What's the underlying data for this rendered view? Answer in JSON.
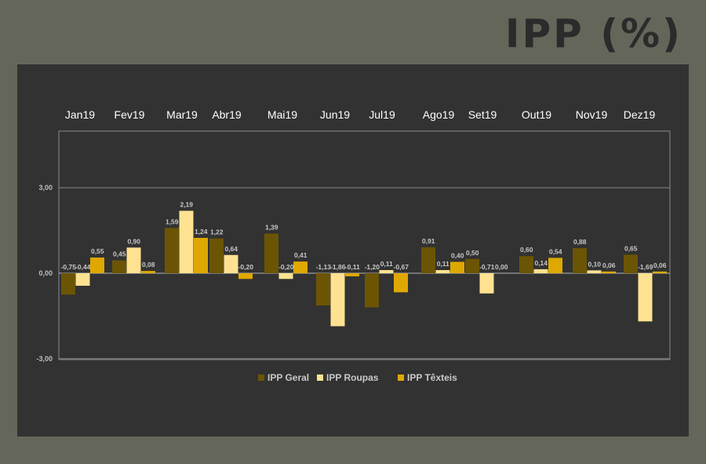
{
  "header": {
    "title": "IPP (%)"
  },
  "chart_data": {
    "type": "bar",
    "title": "IPP (%)",
    "categories": [
      "Jan19",
      "Fev19",
      "Mar19",
      "Abr19",
      "Mai19",
      "Jun19",
      "Jul19",
      "Ago19",
      "Set19",
      "Out19",
      "Nov19",
      "Dez19"
    ],
    "series": [
      {
        "name": "IPP Geral",
        "color": "#6b5505",
        "values": [
          -0.75,
          0.45,
          1.59,
          1.22,
          1.39,
          -1.13,
          -1.2,
          0.91,
          0.5,
          0.6,
          0.88,
          0.65
        ],
        "labels": [
          "-0,75",
          "0,45",
          "1,59",
          "1,22",
          "1,39",
          "-1,13",
          "-1,20",
          "0,91",
          "0,50",
          "0,60",
          "0,88",
          "0,65"
        ]
      },
      {
        "name": "IPP Roupas",
        "color": "#ffe291",
        "values": [
          -0.44,
          0.9,
          2.19,
          0.64,
          -0.2,
          -1.86,
          0.11,
          0.11,
          -0.71,
          0.14,
          0.1,
          -1.69
        ],
        "labels": [
          "-0,44",
          "0,90",
          "2,19",
          "0,64",
          "-0,20",
          "-1,86",
          "0,11",
          "0,11",
          "-0,71",
          "0,14",
          "0,10",
          "-1,69"
        ]
      },
      {
        "name": "IPP Têxteis",
        "color": "#dfa800",
        "values": [
          0.55,
          0.08,
          1.24,
          -0.2,
          0.41,
          -0.11,
          -0.67,
          0.4,
          0.0,
          0.54,
          0.06,
          0.06
        ],
        "labels": [
          "0,55",
          "0,08",
          "1,24",
          "-0,20",
          "0,41",
          "-0,11",
          "-0,67",
          "0,40",
          "0,00",
          "0,54",
          "0,06",
          "0,06"
        ]
      }
    ],
    "yticks": [
      -3,
      0,
      3
    ],
    "ytick_labels": [
      "-3,00",
      "0,00",
      "3,00"
    ],
    "ylim": [
      -3,
      5
    ],
    "grid": true,
    "legend_position": "bottom"
  }
}
